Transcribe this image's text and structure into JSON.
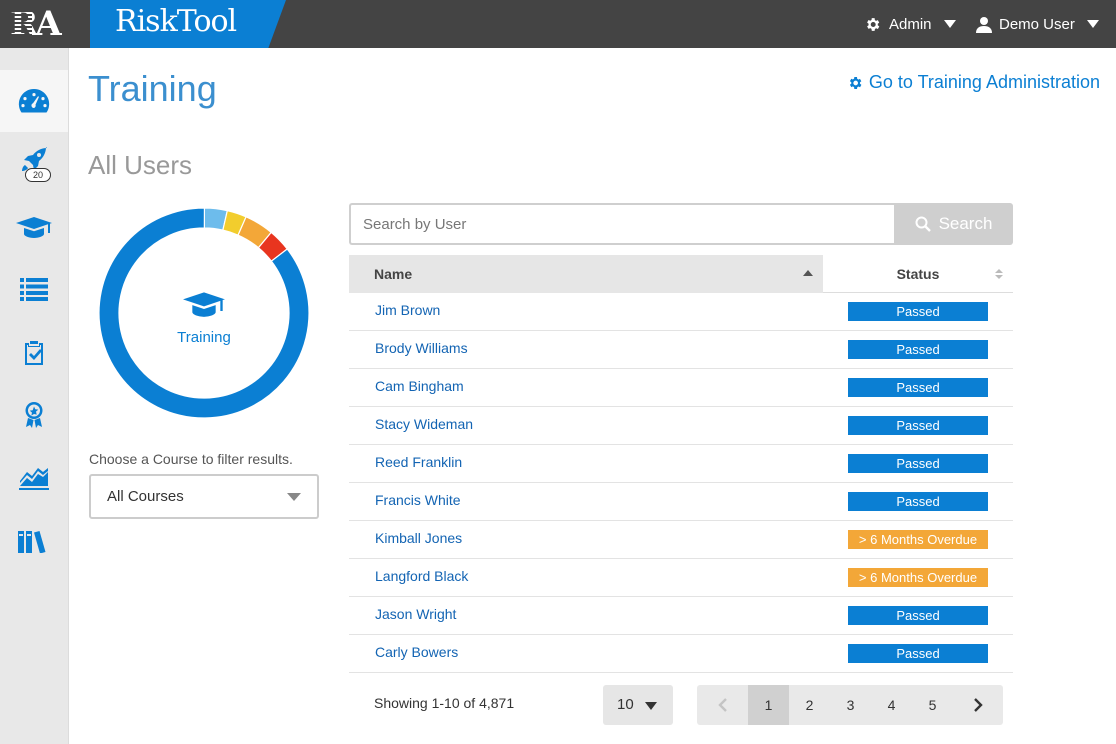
{
  "header": {
    "logo_text": "RA",
    "brand": "RiskTool",
    "admin_menu": "Admin",
    "user_menu": "Demo User"
  },
  "sidebar": {
    "items": [
      {
        "icon": "dashboard-icon",
        "active": true
      },
      {
        "icon": "rocket-icon",
        "badge": "20"
      },
      {
        "icon": "graduation-cap-icon"
      },
      {
        "icon": "list-icon"
      },
      {
        "icon": "clipboard-check-icon"
      },
      {
        "icon": "award-ribbon-icon"
      },
      {
        "icon": "area-chart-icon"
      },
      {
        "icon": "books-icon"
      }
    ]
  },
  "main": {
    "title": "Training",
    "admin_link": "Go to Training Administration",
    "section_title": "All Users",
    "donut": {
      "center_label": "Training",
      "segments": [
        {
          "value": 3.5,
          "color": "#6dbcec"
        },
        {
          "value": 3.0,
          "color": "#f2cd2d"
        },
        {
          "value": 4.5,
          "color": "#f3a738"
        },
        {
          "value": 3.5,
          "color": "#e8351f"
        },
        {
          "value": 85.5,
          "color": "#0b7fd3"
        }
      ]
    },
    "filter_label": "Choose a Course to filter results.",
    "course_select": "All Courses",
    "search": {
      "placeholder": "Search by User",
      "button": "Search"
    },
    "table": {
      "columns": [
        "Name",
        "Status"
      ],
      "rows": [
        {
          "name": "Jim Brown",
          "status": "Passed",
          "type": "passed"
        },
        {
          "name": "Brody Williams",
          "status": "Passed",
          "type": "passed"
        },
        {
          "name": "Cam Bingham",
          "status": "Passed",
          "type": "passed"
        },
        {
          "name": "Stacy Wideman",
          "status": "Passed",
          "type": "passed"
        },
        {
          "name": "Reed Franklin",
          "status": "Passed",
          "type": "passed"
        },
        {
          "name": "Francis White",
          "status": "Passed",
          "type": "passed"
        },
        {
          "name": "Kimball Jones",
          "status": "> 6 Months Overdue",
          "type": "overdue"
        },
        {
          "name": "Langford Black",
          "status": "> 6 Months Overdue",
          "type": "overdue"
        },
        {
          "name": "Jason Wright",
          "status": "Passed",
          "type": "passed"
        },
        {
          "name": "Carly Bowers",
          "status": "Passed",
          "type": "passed"
        }
      ]
    },
    "showing": "Showing 1-10 of 4,871",
    "per_page": "10",
    "pages": [
      "1",
      "2",
      "3",
      "4",
      "5"
    ],
    "current_page": "1"
  }
}
